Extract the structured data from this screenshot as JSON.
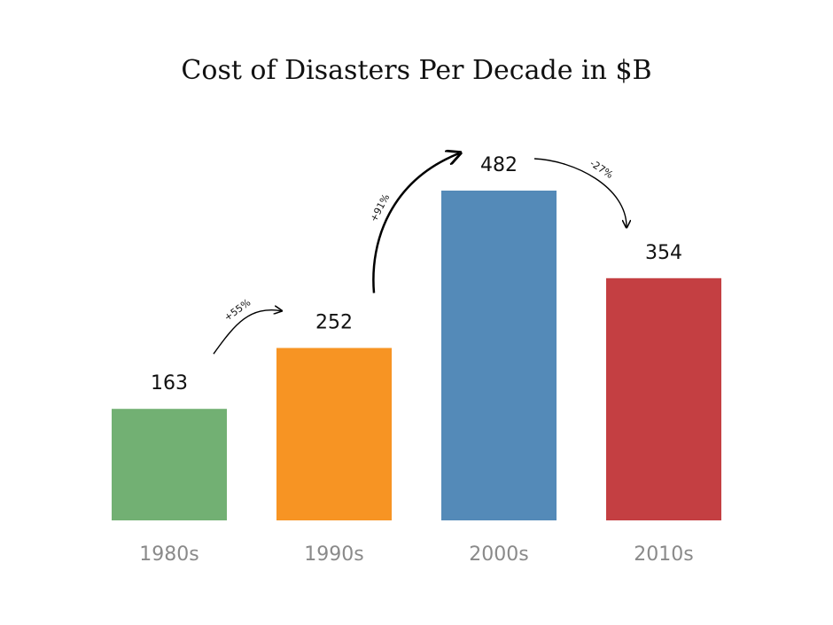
{
  "chart_data": {
    "type": "bar",
    "title": "Cost of Disasters Per Decade in $B",
    "categories": [
      "1980s",
      "1990s",
      "2000s",
      "2010s"
    ],
    "values": [
      163,
      252,
      482,
      354
    ],
    "value_labels": [
      "163",
      "252",
      "482",
      "354"
    ],
    "bar_colors": [
      "#72b073",
      "#f79423",
      "#548ab8",
      "#c43f42"
    ],
    "changes": [
      "+55%",
      "+91%",
      "-27%"
    ],
    "ylim": [
      0,
      482
    ],
    "grid": false,
    "legend": "none"
  }
}
